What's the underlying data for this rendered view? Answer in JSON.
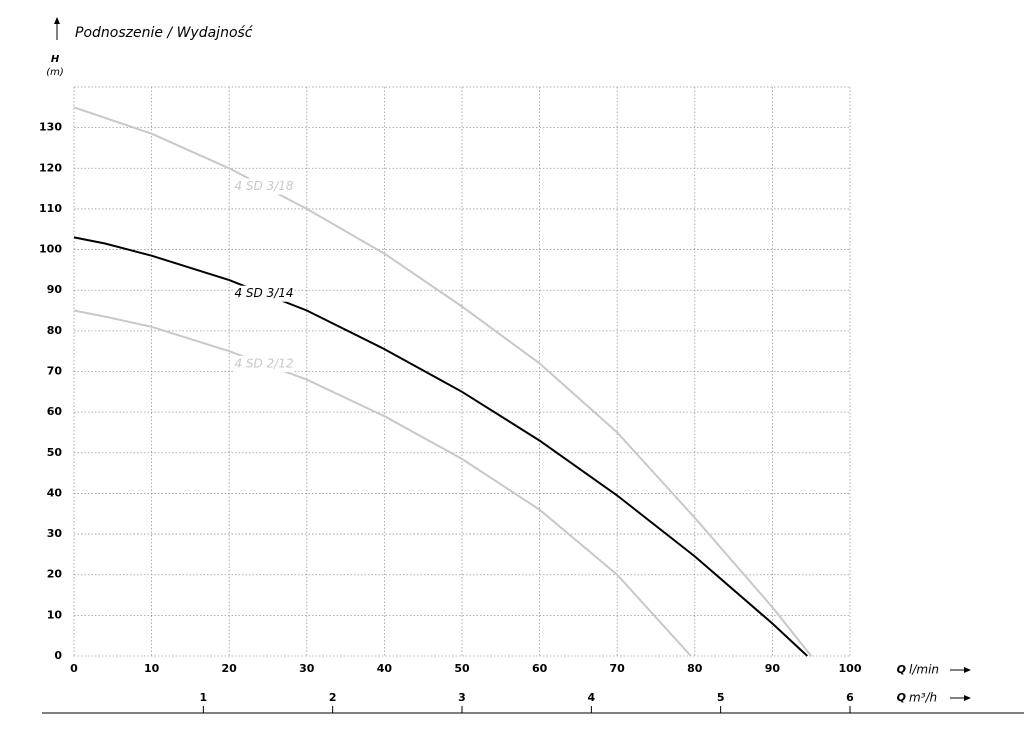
{
  "chart_data": {
    "type": "line",
    "title": "Podnoszenie / Wydajność",
    "y_axis_symbol": "H",
    "y_axis_unit": "(m)",
    "x_axis_symbol": "Q",
    "x_axis_unit": "l/min",
    "x2_axis_symbol": "Q",
    "x2_axis_unit": "m³/h",
    "xlim": [
      0,
      100
    ],
    "xticks": [
      0,
      10,
      20,
      30,
      40,
      50,
      60,
      70,
      80,
      90,
      100
    ],
    "x2lim": [
      0,
      6
    ],
    "x2ticks": [
      1,
      2,
      3,
      4,
      5,
      6
    ],
    "ylim": [
      0,
      140
    ],
    "yticks": [
      0,
      10,
      20,
      30,
      40,
      50,
      60,
      70,
      80,
      90,
      100,
      110,
      120,
      130
    ],
    "grid": true,
    "series": [
      {
        "name": "4 SD 3/18",
        "color": "#c8c8c8",
        "x": [
          0,
          10,
          20,
          25,
          30,
          40,
          50,
          60,
          70,
          80,
          90,
          95
        ],
        "values": [
          135,
          128.5,
          120,
          115,
          110,
          99,
          86,
          72,
          55,
          34,
          12,
          0
        ]
      },
      {
        "name": "4 SD 3/14",
        "color": "#000000",
        "x": [
          0,
          4,
          10,
          20,
          30,
          40,
          50,
          60,
          70,
          80,
          90,
          94.5
        ],
        "values": [
          103,
          101.5,
          98.5,
          92.5,
          85,
          75.5,
          65,
          53,
          39.5,
          24.5,
          8,
          0
        ]
      },
      {
        "name": "4 SD 2/12",
        "color": "#c8c8c8",
        "x": [
          0,
          4,
          10,
          20,
          30,
          40,
          50,
          60,
          70,
          79.5
        ],
        "values": [
          85,
          83.5,
          81,
          75,
          68,
          59,
          48.5,
          36,
          20,
          0
        ]
      }
    ]
  }
}
